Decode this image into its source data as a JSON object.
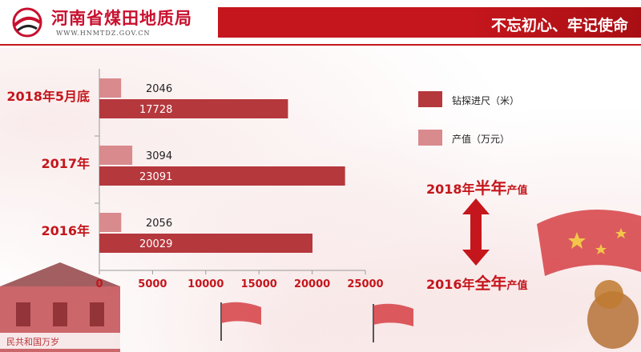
{
  "header": {
    "org_name": "河南省煤田地质局",
    "org_url": "WWW.HNMTDZ.GOV.CN",
    "slogan": "不忘初心、牢记使命",
    "accent_color": "#c4161c"
  },
  "chart_data": {
    "type": "bar",
    "orientation": "horizontal",
    "categories": [
      "2018年5月底",
      "2017年",
      "2016年"
    ],
    "series": [
      {
        "name": "钻探进尺（米）",
        "values": [
          17728,
          23091,
          20029
        ],
        "color": "#b5383d"
      },
      {
        "name": "产值（万元）",
        "values": [
          2046,
          3094,
          2056
        ],
        "color": "#d98a8d"
      }
    ],
    "xlim": [
      0,
      25000
    ],
    "xticks": [
      0,
      5000,
      10000,
      15000,
      20000,
      25000
    ],
    "legend_position": "right",
    "grid": false
  },
  "comparison": {
    "top": {
      "pre": "2018年",
      "big": "半年",
      "post": "产值"
    },
    "bottom": {
      "pre": "2016年",
      "big": "全年",
      "post": "产值"
    }
  },
  "deco": {
    "stamp_text": "民共和国万岁"
  }
}
